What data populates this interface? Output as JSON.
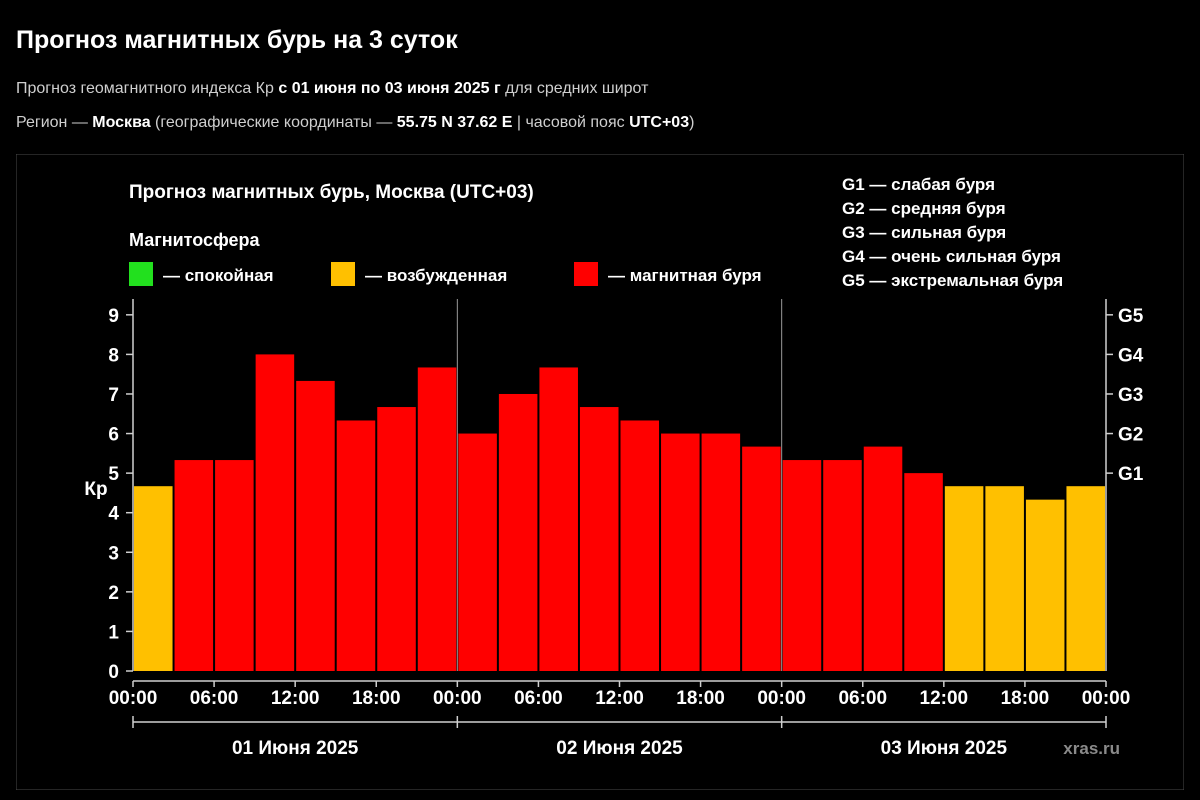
{
  "header": {
    "title": "Прогноз магнитных бурь на 3 суток",
    "sub1_a": "Прогноз геомагнитного индекса Кр ",
    "sub1_b": "с 01 июня по 03 июня 2025 г",
    "sub1_c": " для средних широт",
    "sub2_a": "Регион — ",
    "sub2_b": "Москва",
    "sub2_c": " (географические координаты — ",
    "sub2_d": "55.75 N 37.62 E",
    "sub2_e": " | часовой пояс ",
    "sub2_f": "UTC+03",
    "sub2_g": ")"
  },
  "chart_data": {
    "type": "bar",
    "title": "Прогноз магнитных бурь, Москва (UTC+03)",
    "ylabel": "Кр",
    "ylim": [
      0,
      9.4
    ],
    "yticks": [
      0,
      1,
      2,
      3,
      4,
      5,
      6,
      7,
      8,
      9
    ],
    "right_axis_labels": [
      {
        "kp": 5,
        "label": "G1"
      },
      {
        "kp": 6,
        "label": "G2"
      },
      {
        "kp": 7,
        "label": "G3"
      },
      {
        "kp": 8,
        "label": "G4"
      },
      {
        "kp": 9,
        "label": "G5"
      }
    ],
    "magnetosphere_title": "Магнитосфера",
    "legend": [
      {
        "key": "calm",
        "label": "— спокойная",
        "color": "#22e01e"
      },
      {
        "key": "excited",
        "label": "— возбужденная",
        "color": "#ffc000"
      },
      {
        "key": "storm",
        "label": "— магнитная буря",
        "color": "#ff0000"
      }
    ],
    "storm_levels": [
      "G1 — слабая буря",
      "G2 — средняя буря",
      "G3 — сильная буря",
      "G4 — очень сильная буря",
      "G5 — экстремальная буря"
    ],
    "x_tick_labels": [
      "00:00",
      "06:00",
      "12:00",
      "18:00",
      "00:00",
      "06:00",
      "12:00",
      "18:00",
      "00:00",
      "06:00",
      "12:00",
      "18:00",
      "00:00"
    ],
    "days": [
      "01 Июня 2025",
      "02 Июня 2025",
      "03 Июня 2025"
    ],
    "values": [
      4.67,
      5.33,
      5.33,
      8.0,
      7.33,
      6.33,
      6.67,
      7.67,
      6.0,
      7.0,
      7.67,
      6.67,
      6.33,
      6.0,
      6.0,
      5.67,
      5.33,
      5.33,
      5.67,
      5.0,
      4.67,
      4.67,
      4.33,
      4.67
    ],
    "status": [
      "excited",
      "storm",
      "storm",
      "storm",
      "storm",
      "storm",
      "storm",
      "storm",
      "storm",
      "storm",
      "storm",
      "storm",
      "storm",
      "storm",
      "storm",
      "storm",
      "storm",
      "storm",
      "storm",
      "storm",
      "excited",
      "excited",
      "excited",
      "excited"
    ],
    "watermark": "xras.ru"
  }
}
